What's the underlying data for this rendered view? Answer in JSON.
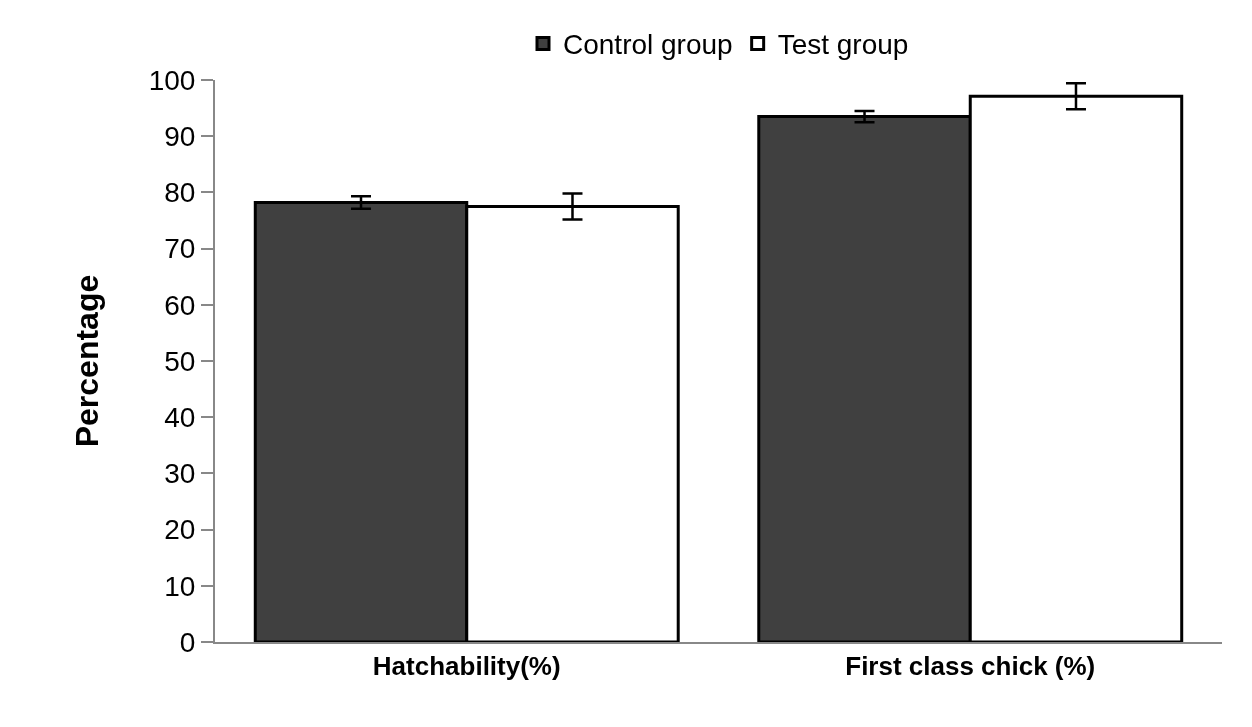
{
  "chart_data": {
    "type": "bar",
    "ylabel": "Percentage",
    "categories": [
      "Hatchability(%)",
      "First class chick (%)"
    ],
    "series": [
      {
        "name": "Control group",
        "color": "#404040",
        "values": [
          78.2,
          93.5
        ],
        "errors": [
          1.1,
          1.0
        ]
      },
      {
        "name": "Test group",
        "color": "#ffffff",
        "values": [
          77.5,
          97.1
        ],
        "errors": [
          2.3,
          2.3
        ]
      }
    ],
    "ylim": [
      0,
      100
    ],
    "yticks": [
      0,
      10,
      20,
      30,
      40,
      50,
      60,
      70,
      80,
      90,
      100
    ],
    "grid": false,
    "legend": "top"
  }
}
